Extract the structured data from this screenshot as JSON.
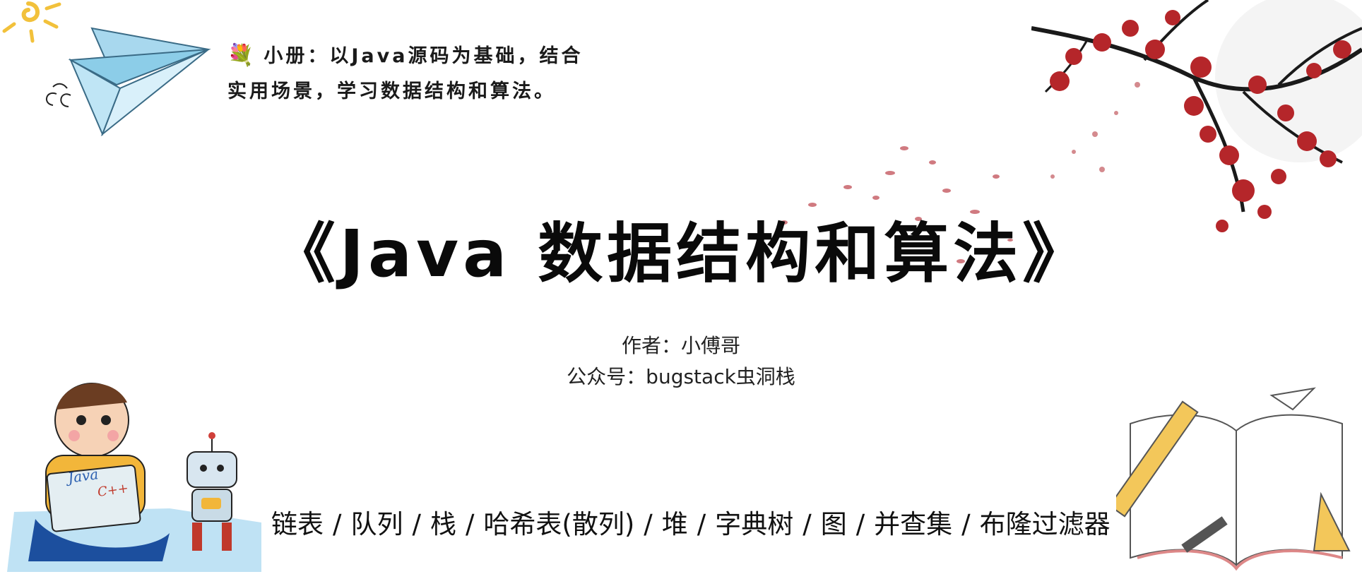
{
  "intro": {
    "icon": "flower-bouquet-icon",
    "line1": "小册：以Java源码为基础，结合",
    "line2": "实用场景，学习数据结构和算法。"
  },
  "title": "《Java 数据结构和算法》",
  "author": {
    "line1": "作者：小傅哥",
    "line2": "公众号：bugstack虫洞栈"
  },
  "topics": [
    "链表",
    "队列",
    "栈",
    "哈希表(散列)",
    "堆",
    "字典树",
    "图",
    "并查集",
    "布隆过滤器"
  ],
  "separator": "/",
  "illustration": {
    "laptop_line1": "Java",
    "laptop_line2": "C++"
  },
  "colors": {
    "plane_blue": "#8ccde8",
    "blossom_red": "#b5262a",
    "sun_yellow": "#f2c13b",
    "mat_blue": "#bfe2f4"
  }
}
